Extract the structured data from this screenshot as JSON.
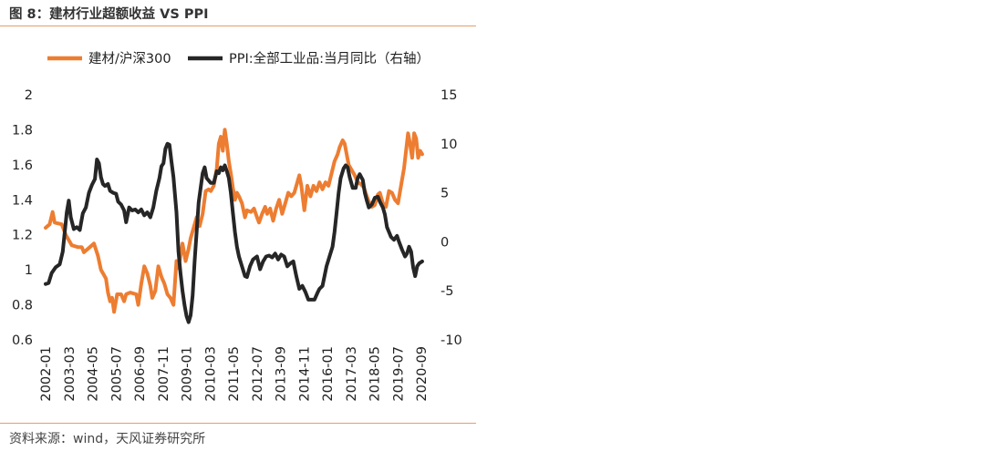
{
  "figure": {
    "title": "图 8：建材行业超额收益 VS PPI",
    "source": "资料来源：wind，天风证券研究所"
  },
  "colors": {
    "accent_rule": "#e2a06a",
    "series_orange": "#ed7d31",
    "series_black": "#262626"
  },
  "chart_data": {
    "type": "line",
    "legend_position": "top",
    "grid": false,
    "x_ticks": [
      "2002-01",
      "2003-03",
      "2004-05",
      "2005-07",
      "2006-09",
      "2007-11",
      "2009-01",
      "2010-03",
      "2011-05",
      "2012-07",
      "2013-09",
      "2014-11",
      "2016-01",
      "2017-03",
      "2018-05",
      "2019-07",
      "2020-09"
    ],
    "x_range": [
      2002.0,
      2020.75
    ],
    "y_left": {
      "ylim": [
        0.6,
        2.0
      ],
      "ticks": [
        "0.6",
        "0.8",
        "1",
        "1.2",
        "1.4",
        "1.6",
        "1.8",
        "2"
      ]
    },
    "y_right": {
      "ylim": [
        -10,
        15
      ],
      "ticks": [
        "-10",
        "-5",
        "0",
        "5",
        "10",
        "15"
      ]
    },
    "series": [
      {
        "name": "建材/沪深300",
        "axis": "left",
        "color": "#ed7d31",
        "points": [
          [
            2002.0,
            1.24
          ],
          [
            2002.2,
            1.26
          ],
          [
            2002.35,
            1.33
          ],
          [
            2002.45,
            1.27
          ],
          [
            2002.8,
            1.26
          ],
          [
            2003.0,
            1.2
          ],
          [
            2003.3,
            1.14
          ],
          [
            2003.6,
            1.13
          ],
          [
            2003.8,
            1.13
          ],
          [
            2003.9,
            1.1
          ],
          [
            2004.2,
            1.13
          ],
          [
            2004.4,
            1.15
          ],
          [
            2004.6,
            1.08
          ],
          [
            2004.75,
            1.0
          ],
          [
            2004.9,
            0.97
          ],
          [
            2005.0,
            0.95
          ],
          [
            2005.1,
            0.87
          ],
          [
            2005.2,
            0.82
          ],
          [
            2005.3,
            0.84
          ],
          [
            2005.4,
            0.76
          ],
          [
            2005.55,
            0.86
          ],
          [
            2005.75,
            0.86
          ],
          [
            2005.9,
            0.82
          ],
          [
            2006.0,
            0.86
          ],
          [
            2006.2,
            0.87
          ],
          [
            2006.5,
            0.86
          ],
          [
            2006.6,
            0.8
          ],
          [
            2006.75,
            0.92
          ],
          [
            2006.9,
            1.02
          ],
          [
            2007.05,
            0.98
          ],
          [
            2007.2,
            0.91
          ],
          [
            2007.3,
            0.84
          ],
          [
            2007.45,
            0.88
          ],
          [
            2007.6,
            1.02
          ],
          [
            2007.75,
            0.96
          ],
          [
            2007.9,
            0.92
          ],
          [
            2008.05,
            0.86
          ],
          [
            2008.2,
            0.84
          ],
          [
            2008.35,
            0.8
          ],
          [
            2008.5,
            1.05
          ],
          [
            2008.6,
            1.01
          ],
          [
            2008.7,
            1.08
          ],
          [
            2008.8,
            1.15
          ],
          [
            2008.95,
            1.05
          ],
          [
            2009.1,
            1.12
          ],
          [
            2009.2,
            1.18
          ],
          [
            2009.35,
            1.24
          ],
          [
            2009.5,
            1.3
          ],
          [
            2009.65,
            1.25
          ],
          [
            2009.8,
            1.32
          ],
          [
            2009.95,
            1.45
          ],
          [
            2010.1,
            1.46
          ],
          [
            2010.2,
            1.45
          ],
          [
            2010.35,
            1.48
          ],
          [
            2010.5,
            1.58
          ],
          [
            2010.6,
            1.72
          ],
          [
            2010.7,
            1.76
          ],
          [
            2010.8,
            1.68
          ],
          [
            2010.9,
            1.8
          ],
          [
            2011.0,
            1.72
          ],
          [
            2011.1,
            1.62
          ],
          [
            2011.2,
            1.55
          ],
          [
            2011.3,
            1.47
          ],
          [
            2011.4,
            1.4
          ],
          [
            2011.5,
            1.44
          ],
          [
            2011.6,
            1.42
          ],
          [
            2011.75,
            1.38
          ],
          [
            2011.9,
            1.3
          ],
          [
            2012.0,
            1.34
          ],
          [
            2012.2,
            1.33
          ],
          [
            2012.35,
            1.35
          ],
          [
            2012.5,
            1.3
          ],
          [
            2012.6,
            1.27
          ],
          [
            2012.75,
            1.32
          ],
          [
            2012.9,
            1.36
          ],
          [
            2013.0,
            1.32
          ],
          [
            2013.15,
            1.35
          ],
          [
            2013.3,
            1.28
          ],
          [
            2013.45,
            1.35
          ],
          [
            2013.6,
            1.4
          ],
          [
            2013.75,
            1.32
          ],
          [
            2013.9,
            1.38
          ],
          [
            2014.05,
            1.44
          ],
          [
            2014.2,
            1.42
          ],
          [
            2014.35,
            1.44
          ],
          [
            2014.5,
            1.5
          ],
          [
            2014.6,
            1.54
          ],
          [
            2014.7,
            1.48
          ],
          [
            2014.85,
            1.34
          ],
          [
            2015.0,
            1.48
          ],
          [
            2015.15,
            1.42
          ],
          [
            2015.3,
            1.48
          ],
          [
            2015.45,
            1.45
          ],
          [
            2015.6,
            1.5
          ],
          [
            2015.75,
            1.46
          ],
          [
            2015.9,
            1.5
          ],
          [
            2016.05,
            1.48
          ],
          [
            2016.2,
            1.55
          ],
          [
            2016.35,
            1.62
          ],
          [
            2016.5,
            1.66
          ],
          [
            2016.6,
            1.7
          ],
          [
            2016.75,
            1.74
          ],
          [
            2016.85,
            1.72
          ],
          [
            2016.95,
            1.66
          ],
          [
            2017.05,
            1.6
          ],
          [
            2017.2,
            1.57
          ],
          [
            2017.35,
            1.54
          ],
          [
            2017.5,
            1.5
          ],
          [
            2017.65,
            1.49
          ],
          [
            2017.8,
            1.47
          ],
          [
            2017.95,
            1.42
          ],
          [
            2018.05,
            1.39
          ],
          [
            2018.2,
            1.36
          ],
          [
            2018.35,
            1.37
          ],
          [
            2018.5,
            1.43
          ],
          [
            2018.6,
            1.44
          ],
          [
            2018.75,
            1.38
          ],
          [
            2018.9,
            1.36
          ],
          [
            2019.05,
            1.45
          ],
          [
            2019.2,
            1.44
          ],
          [
            2019.35,
            1.4
          ],
          [
            2019.5,
            1.38
          ],
          [
            2019.65,
            1.48
          ],
          [
            2019.8,
            1.58
          ],
          [
            2019.9,
            1.68
          ],
          [
            2020.0,
            1.78
          ],
          [
            2020.1,
            1.72
          ],
          [
            2020.2,
            1.64
          ],
          [
            2020.3,
            1.78
          ],
          [
            2020.4,
            1.75
          ],
          [
            2020.5,
            1.64
          ],
          [
            2020.6,
            1.68
          ],
          [
            2020.7,
            1.66
          ]
        ]
      },
      {
        "name": "PPI:全部工业品:当月同比（右轴）",
        "axis": "right",
        "color": "#262626",
        "points": [
          [
            2002.0,
            -4.3
          ],
          [
            2002.15,
            -4.2
          ],
          [
            2002.3,
            -3.2
          ],
          [
            2002.5,
            -2.6
          ],
          [
            2002.7,
            -2.3
          ],
          [
            2002.85,
            -1.0
          ],
          [
            2002.95,
            1.0
          ],
          [
            2003.05,
            3.0
          ],
          [
            2003.15,
            4.2
          ],
          [
            2003.25,
            2.5
          ],
          [
            2003.4,
            1.3
          ],
          [
            2003.55,
            1.5
          ],
          [
            2003.7,
            1.2
          ],
          [
            2003.85,
            2.9
          ],
          [
            2004.0,
            3.5
          ],
          [
            2004.15,
            5.0
          ],
          [
            2004.3,
            5.8
          ],
          [
            2004.45,
            6.4
          ],
          [
            2004.55,
            8.4
          ],
          [
            2004.65,
            8.0
          ],
          [
            2004.75,
            6.6
          ],
          [
            2004.85,
            5.9
          ],
          [
            2004.95,
            5.7
          ],
          [
            2005.1,
            5.9
          ],
          [
            2005.2,
            5.2
          ],
          [
            2005.35,
            5.0
          ],
          [
            2005.5,
            4.9
          ],
          [
            2005.6,
            4.1
          ],
          [
            2005.75,
            3.8
          ],
          [
            2005.9,
            3.2
          ],
          [
            2006.0,
            2.0
          ],
          [
            2006.15,
            3.5
          ],
          [
            2006.3,
            3.2
          ],
          [
            2006.45,
            3.3
          ],
          [
            2006.6,
            3.0
          ],
          [
            2006.75,
            3.3
          ],
          [
            2006.9,
            2.7
          ],
          [
            2007.05,
            3.0
          ],
          [
            2007.2,
            2.5
          ],
          [
            2007.35,
            3.5
          ],
          [
            2007.5,
            5.2
          ],
          [
            2007.65,
            6.5
          ],
          [
            2007.75,
            7.7
          ],
          [
            2007.85,
            8.0
          ],
          [
            2007.95,
            9.5
          ],
          [
            2008.05,
            10.0
          ],
          [
            2008.15,
            9.9
          ],
          [
            2008.25,
            8.2
          ],
          [
            2008.35,
            6.6
          ],
          [
            2008.5,
            3.0
          ],
          [
            2008.6,
            -1.0
          ],
          [
            2008.7,
            -3.2
          ],
          [
            2008.8,
            -5.0
          ],
          [
            2008.9,
            -6.5
          ],
          [
            2009.0,
            -7.6
          ],
          [
            2009.1,
            -8.2
          ],
          [
            2009.2,
            -7.5
          ],
          [
            2009.3,
            -5.5
          ],
          [
            2009.4,
            -2.0
          ],
          [
            2009.5,
            1.0
          ],
          [
            2009.6,
            4.0
          ],
          [
            2009.7,
            5.5
          ],
          [
            2009.8,
            7.0
          ],
          [
            2009.9,
            7.6
          ],
          [
            2010.0,
            6.5
          ],
          [
            2010.2,
            6.0
          ],
          [
            2010.35,
            6.0
          ],
          [
            2010.5,
            7.2
          ],
          [
            2010.6,
            7.0
          ],
          [
            2010.7,
            7.6
          ],
          [
            2010.8,
            7.3
          ],
          [
            2010.9,
            7.8
          ],
          [
            2011.0,
            7.2
          ],
          [
            2011.1,
            6.5
          ],
          [
            2011.2,
            5.0
          ],
          [
            2011.3,
            3.0
          ],
          [
            2011.4,
            1.0
          ],
          [
            2011.5,
            -0.5
          ],
          [
            2011.6,
            -1.5
          ],
          [
            2011.75,
            -2.5
          ],
          [
            2011.9,
            -3.5
          ],
          [
            2012.0,
            -3.6
          ],
          [
            2012.15,
            -2.5
          ],
          [
            2012.3,
            -1.8
          ],
          [
            2012.5,
            -1.5
          ],
          [
            2012.65,
            -2.8
          ],
          [
            2012.8,
            -2.0
          ],
          [
            2012.95,
            -1.5
          ],
          [
            2013.1,
            -1.4
          ],
          [
            2013.25,
            -1.6
          ],
          [
            2013.4,
            -1.2
          ],
          [
            2013.55,
            -1.8
          ],
          [
            2013.7,
            -1.3
          ],
          [
            2013.85,
            -1.5
          ],
          [
            2014.0,
            -2.5
          ],
          [
            2014.15,
            -2.2
          ],
          [
            2014.3,
            -2.0
          ],
          [
            2014.45,
            -3.5
          ],
          [
            2014.6,
            -4.8
          ],
          [
            2014.75,
            -4.5
          ],
          [
            2014.9,
            -5.1
          ],
          [
            2015.05,
            -5.9
          ],
          [
            2015.2,
            -5.9
          ],
          [
            2015.35,
            -5.9
          ],
          [
            2015.5,
            -5.2
          ],
          [
            2015.6,
            -4.8
          ],
          [
            2015.75,
            -4.5
          ],
          [
            2015.85,
            -3.5
          ],
          [
            2015.95,
            -2.5
          ],
          [
            2016.1,
            -1.5
          ],
          [
            2016.25,
            -0.5
          ],
          [
            2016.35,
            1.0
          ],
          [
            2016.45,
            3.0
          ],
          [
            2016.55,
            5.0
          ],
          [
            2016.65,
            6.5
          ],
          [
            2016.8,
            7.5
          ],
          [
            2016.9,
            7.8
          ],
          [
            2017.0,
            7.6
          ],
          [
            2017.1,
            6.6
          ],
          [
            2017.25,
            5.5
          ],
          [
            2017.4,
            5.5
          ],
          [
            2017.5,
            6.5
          ],
          [
            2017.6,
            6.9
          ],
          [
            2017.75,
            6.3
          ],
          [
            2017.85,
            5.0
          ],
          [
            2017.95,
            4.2
          ],
          [
            2018.05,
            3.5
          ],
          [
            2018.2,
            3.8
          ],
          [
            2018.35,
            4.5
          ],
          [
            2018.5,
            4.6
          ],
          [
            2018.6,
            4.1
          ],
          [
            2018.75,
            3.5
          ],
          [
            2018.85,
            2.8
          ],
          [
            2018.95,
            1.5
          ],
          [
            2019.05,
            1.0
          ],
          [
            2019.15,
            0.5
          ],
          [
            2019.3,
            0.2
          ],
          [
            2019.45,
            0.6
          ],
          [
            2019.55,
            0.0
          ],
          [
            2019.7,
            -0.8
          ],
          [
            2019.85,
            -1.5
          ],
          [
            2019.95,
            -1.2
          ],
          [
            2020.05,
            -0.5
          ],
          [
            2020.15,
            -1.0
          ],
          [
            2020.25,
            -2.6
          ],
          [
            2020.35,
            -3.5
          ],
          [
            2020.45,
            -2.5
          ],
          [
            2020.55,
            -2.2
          ],
          [
            2020.7,
            -2.0
          ]
        ]
      }
    ]
  }
}
